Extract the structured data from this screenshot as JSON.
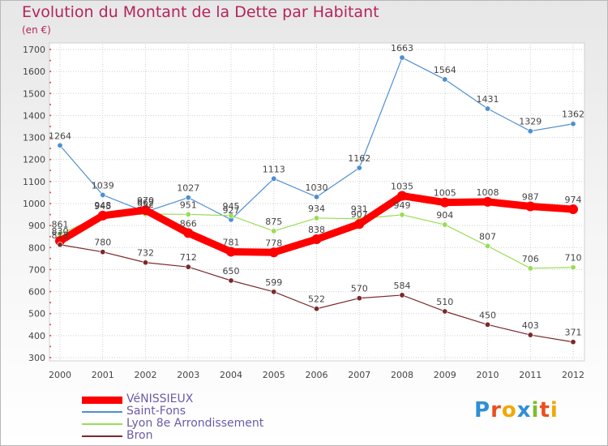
{
  "title": "Evolution du Montant de la Dette par Habitant",
  "subtitle": "(en €)",
  "logo_text": "Proxiti",
  "chart_data": {
    "type": "line",
    "title": "Evolution du Montant de la Dette par Habitant",
    "ylabel": "(en €)",
    "xlabel": "",
    "x": [
      "2000",
      "2001",
      "2002",
      "2003",
      "2004",
      "2005",
      "2006",
      "2007",
      "2008",
      "2009",
      "2010",
      "2011",
      "2012"
    ],
    "ylim": [
      300,
      1700
    ],
    "yticks": [
      "300",
      "400",
      "500",
      "600",
      "700",
      "800",
      "900",
      "1000",
      "1100",
      "1200",
      "1300",
      "1400",
      "1500",
      "1600",
      "1700"
    ],
    "grid": true,
    "legend_position": "bottom-left",
    "series": [
      {
        "name": "VéNISSIEUX",
        "color": "#ff0000",
        "values": [
          830,
          945,
          970,
          866,
          781,
          778,
          838,
          907,
          1035,
          1005,
          1008,
          987,
          974
        ],
        "labels": [
          "830",
          "945",
          "970",
          "866",
          "781",
          "778",
          "838",
          "907",
          "1035",
          "1005",
          "1008",
          "987",
          "974"
        ]
      },
      {
        "name": "Saint-Fons",
        "color": "#4f8fcf",
        "values": [
          1264,
          1039,
          962,
          1027,
          927,
          1113,
          1030,
          1162,
          1663,
          1564,
          1431,
          1329,
          1362
        ],
        "labels": [
          "1264",
          "1039",
          "962",
          "1027",
          "927",
          "1113",
          "1030",
          "1162",
          "1663",
          "1564",
          "1431",
          "1329",
          "1362"
        ]
      },
      {
        "name": "Lyon 8e  Arrondissement",
        "color": "#99dd55",
        "values": [
          861,
          948,
          952,
          951,
          945,
          875,
          934,
          931,
          949,
          904,
          807,
          706,
          710
        ],
        "labels": [
          "861",
          "948",
          "952",
          "951",
          "945",
          "875",
          "934",
          "931",
          "949",
          "904",
          "807",
          "706",
          "710"
        ]
      },
      {
        "name": "Bron",
        "color": "#7a2a2a",
        "values": [
          813,
          780,
          732,
          712,
          650,
          599,
          522,
          570,
          584,
          510,
          450,
          403,
          371
        ],
        "labels": [
          "813",
          "780",
          "732",
          "712",
          "650",
          "599",
          "522",
          "570",
          "584",
          "510",
          "450",
          "403",
          "371"
        ]
      }
    ]
  }
}
